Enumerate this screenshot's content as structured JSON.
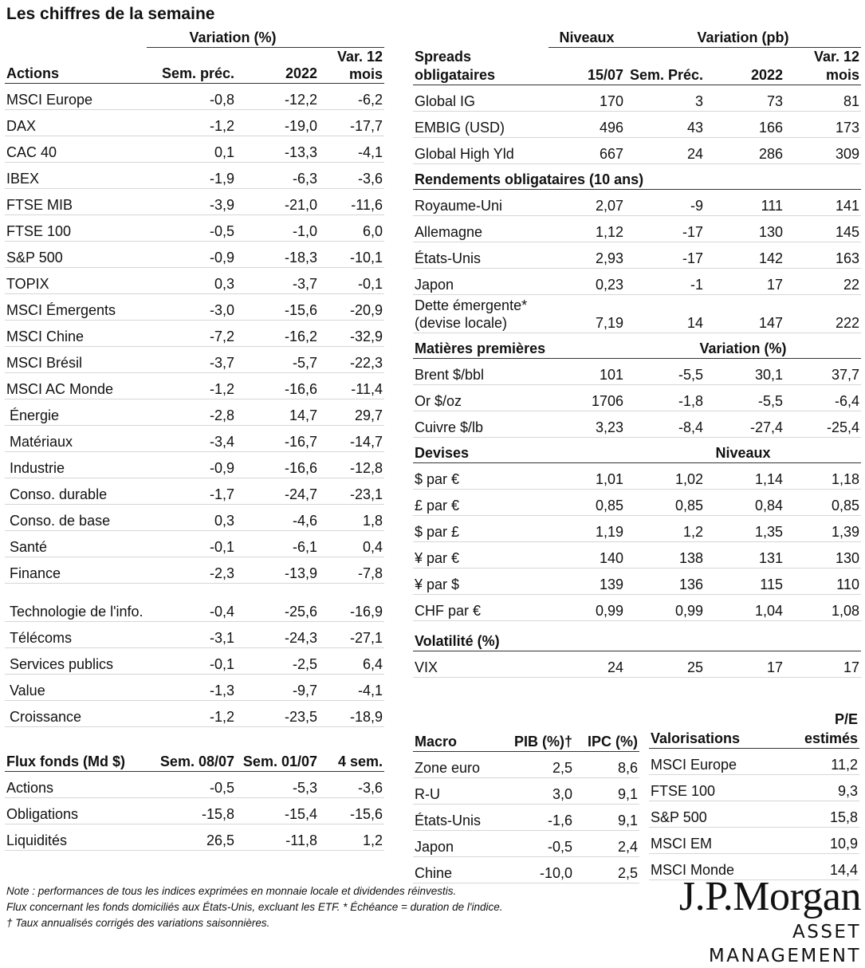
{
  "title": "Les chiffres de la semaine",
  "equities": {
    "group_header": "Variation (%)",
    "headers": [
      "Actions",
      "Sem. préc.",
      "2022",
      "Var. 12 mois"
    ],
    "rows": [
      [
        "MSCI Europe",
        "-0,8",
        "-12,2",
        "-6,2"
      ],
      [
        "DAX",
        "-1,2",
        "-19,0",
        "-17,7"
      ],
      [
        "CAC 40",
        "0,1",
        "-13,3",
        "-4,1"
      ],
      [
        "IBEX",
        "-1,9",
        "-6,3",
        "-3,6"
      ],
      [
        "FTSE MIB",
        "-3,9",
        "-21,0",
        "-11,6"
      ],
      [
        "FTSE 100",
        "-0,5",
        "-1,0",
        "6,0"
      ],
      [
        "S&P 500",
        "-0,9",
        "-18,3",
        "-10,1"
      ],
      [
        "TOPIX",
        "0,3",
        "-3,7",
        "-0,1"
      ],
      [
        "MSCI Émergents",
        "-3,0",
        "-15,6",
        "-20,9"
      ],
      [
        "MSCI Chine",
        "-7,2",
        "-16,2",
        "-32,9"
      ],
      [
        "MSCI Brésil",
        "-3,7",
        "-5,7",
        "-22,3"
      ],
      [
        "MSCI AC Monde",
        "-1,2",
        "-16,6",
        "-11,4"
      ],
      [
        "Énergie",
        "-2,8",
        "14,7",
        "29,7"
      ],
      [
        "Matériaux",
        "-3,4",
        "-16,7",
        "-14,7"
      ],
      [
        "Industrie",
        "-0,9",
        "-16,6",
        "-12,8"
      ],
      [
        "Conso. durable",
        "-1,7",
        "-24,7",
        "-23,1"
      ],
      [
        "Conso. de base",
        "0,3",
        "-4,6",
        "1,8"
      ],
      [
        "Santé",
        "-0,1",
        "-6,1",
        "0,4"
      ],
      [
        "Finance",
        "-2,3",
        "-13,9",
        "-7,8"
      ],
      [
        "Technologie de l'info.",
        "-0,4",
        "-25,6",
        "-16,9"
      ],
      [
        "Télécoms",
        "-3,1",
        "-24,3",
        "-27,1"
      ],
      [
        "Services publics",
        "-0,1",
        "-2,5",
        "6,4"
      ],
      [
        "Value",
        "-1,3",
        "-9,7",
        "-4,1"
      ],
      [
        "Croissance",
        "-1,2",
        "-23,5",
        "-18,9"
      ]
    ]
  },
  "flows": {
    "headers": [
      "Flux fonds (Md $)",
      "Sem. 08/07",
      "Sem. 01/07",
      "4 sem."
    ],
    "rows": [
      [
        "Actions",
        "-0,5",
        "-5,3",
        "-3,6"
      ],
      [
        "Obligations",
        "-15,8",
        "-15,4",
        "-15,6"
      ],
      [
        "Liquidités",
        "26,5",
        "-11,8",
        "1,2"
      ]
    ]
  },
  "bonds": {
    "group_levels": "Niveaux",
    "group_variation": "Variation (pb)",
    "headers": [
      "Spreads obligataires",
      "15/07",
      "Sem. Préc.",
      "2022",
      "Var. 12 mois"
    ],
    "spreads": [
      [
        "Global IG",
        "170",
        "3",
        "73",
        "81"
      ],
      [
        "EMBIG (USD)",
        "496",
        "43",
        "166",
        "173"
      ],
      [
        "Global High Yld",
        "667",
        "24",
        "286",
        "309"
      ]
    ],
    "yields_title": "Rendements obligataires (10 ans)",
    "yields": [
      [
        "Royaume-Uni",
        "2,07",
        "-9",
        "111",
        "141"
      ],
      [
        "Allemagne",
        "1,12",
        "-17",
        "130",
        "145"
      ],
      [
        "États-Unis",
        "2,93",
        "-17",
        "142",
        "163"
      ],
      [
        "Japon",
        "0,23",
        "-1",
        "17",
        "22"
      ],
      [
        "Dette émergente* (devise locale)",
        "7,19",
        "14",
        "147",
        "222"
      ]
    ],
    "commodities_title": "Matières premières",
    "commodities_sub": "Variation (%)",
    "commodities": [
      [
        "Brent $/bbl",
        "101",
        "-5,5",
        "30,1",
        "37,7"
      ],
      [
        "Or $/oz",
        "1706",
        "-1,8",
        "-5,5",
        "-6,4"
      ],
      [
        "Cuivre $/lb",
        "3,23",
        "-8,4",
        "-27,4",
        "-25,4"
      ]
    ],
    "fx_title": "Devises",
    "fx_sub": "Niveaux",
    "fx": [
      [
        "$ par €",
        "1,01",
        "1,02",
        "1,14",
        "1,18"
      ],
      [
        "£ par €",
        "0,85",
        "0,85",
        "0,84",
        "0,85"
      ],
      [
        "$ par £",
        "1,19",
        "1,2",
        "1,35",
        "1,39"
      ],
      [
        "¥ par €",
        "140",
        "138",
        "131",
        "130"
      ],
      [
        "¥ par $",
        "139",
        "136",
        "115",
        "110"
      ],
      [
        "CHF par €",
        "0,99",
        "0,99",
        "1,04",
        "1,08"
      ]
    ],
    "vol_title": "Volatilité (%)",
    "vol": [
      [
        "VIX",
        "24",
        "25",
        "17",
        "17"
      ]
    ]
  },
  "macro": {
    "headers": [
      "Macro",
      "PIB (%)†",
      "IPC (%)"
    ],
    "rows": [
      [
        "Zone euro",
        "2,5",
        "8,6"
      ],
      [
        "R-U",
        "3,0",
        "9,1"
      ],
      [
        "États-Unis",
        "-1,6",
        "9,1"
      ],
      [
        "Japon",
        "-0,5",
        "2,4"
      ],
      [
        "Chine",
        "-10,0",
        "2,5"
      ]
    ]
  },
  "valuations": {
    "headers": [
      "Valorisations",
      "P/E estimés"
    ],
    "rows": [
      [
        "MSCI Europe",
        "11,2"
      ],
      [
        "FTSE 100",
        "9,3"
      ],
      [
        "S&P 500",
        "15,8"
      ],
      [
        "MSCI EM",
        "10,9"
      ],
      [
        "MSCI Monde",
        "14,4"
      ]
    ]
  },
  "notes": [
    "Note : performances de tous les indices exprimées en monnaie locale et dividendes réinvestis.",
    "Flux concernant les fonds domiciliés aux États-Unis, excluant les ETF. * Échéance = duration de l'indice.",
    "† Taux annualisés corrigés des variations saisonnières."
  ],
  "logo": {
    "main": "J.P.Morgan",
    "sub": "ASSET MANAGEMENT"
  }
}
